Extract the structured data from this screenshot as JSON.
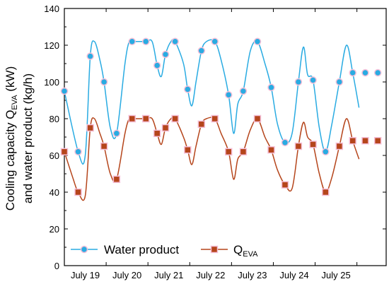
{
  "chart_data": {
    "type": "line",
    "ylabel_line1_main": "Cooling capacity Q",
    "ylabel_line1_sub": "EVA",
    "ylabel_line1_tail": " (kW)",
    "ylabel_line2": "and water product (kg/h)",
    "ylim": [
      0,
      140
    ],
    "yticks": [
      0,
      20,
      40,
      60,
      80,
      100,
      120,
      140
    ],
    "xlim": [
      18.0,
      25.7
    ],
    "xticks": [
      {
        "value": 18.5,
        "label": "July 19"
      },
      {
        "value": 19.5,
        "label": "July 20"
      },
      {
        "value": 20.5,
        "label": "July 21"
      },
      {
        "value": 21.5,
        "label": "July 22"
      },
      {
        "value": 22.5,
        "label": "July 23"
      },
      {
        "value": 23.5,
        "label": "July 24"
      },
      {
        "value": 24.5,
        "label": "July 25"
      }
    ],
    "legend_position": "bottom-left",
    "series": [
      {
        "name": "Water product",
        "color": "#29ABE2",
        "marker": "circle",
        "x": [
          18.0,
          18.33,
          18.62,
          18.95,
          19.25,
          19.62,
          19.95,
          20.22,
          20.42,
          20.65,
          20.95,
          21.28,
          21.6,
          21.93,
          22.28,
          22.62,
          22.95,
          23.28,
          23.6,
          23.95,
          24.25,
          24.58,
          24.9,
          25.2,
          25.5
        ],
        "y": [
          95,
          62,
          114,
          100,
          72,
          122,
          122,
          109,
          115,
          122,
          96,
          117,
          122,
          93,
          95,
          122,
          97,
          67,
          100,
          101,
          62,
          100,
          105,
          105,
          105
        ]
      },
      {
        "name": "Q_EVA",
        "legend_main": "Q",
        "legend_sub": "EVA",
        "color": "#B5451B",
        "marker": "square",
        "x": [
          18.0,
          18.33,
          18.62,
          18.95,
          19.25,
          19.62,
          19.95,
          20.22,
          20.42,
          20.65,
          20.95,
          21.28,
          21.6,
          21.93,
          22.28,
          22.62,
          22.95,
          23.28,
          23.6,
          23.95,
          24.25,
          24.58,
          24.9,
          25.2,
          25.5
        ],
        "y": [
          62,
          40,
          75,
          65,
          47,
          80,
          80,
          72,
          75,
          80,
          63,
          77,
          80,
          62,
          62,
          80,
          63,
          44,
          65,
          66,
          40,
          65,
          68,
          68,
          68
        ]
      }
    ],
    "curve_points": {
      "Water product": [
        [
          18.0,
          95
        ],
        [
          18.33,
          62
        ],
        [
          18.5,
          60
        ],
        [
          18.62,
          114
        ],
        [
          18.72,
          122
        ],
        [
          18.85,
          112
        ],
        [
          18.95,
          100
        ],
        [
          19.1,
          75
        ],
        [
          19.25,
          72
        ],
        [
          19.45,
          110
        ],
        [
          19.55,
          122
        ],
        [
          19.62,
          122
        ],
        [
          19.95,
          122
        ],
        [
          20.1,
          122
        ],
        [
          20.22,
          109
        ],
        [
          20.32,
          103
        ],
        [
          20.42,
          115
        ],
        [
          20.55,
          122
        ],
        [
          20.65,
          122
        ],
        [
          20.85,
          110
        ],
        [
          20.95,
          96
        ],
        [
          21.05,
          87
        ],
        [
          21.15,
          100
        ],
        [
          21.28,
          117
        ],
        [
          21.4,
          122
        ],
        [
          21.6,
          122
        ],
        [
          21.75,
          112
        ],
        [
          21.93,
          93
        ],
        [
          22.05,
          72
        ],
        [
          22.15,
          88
        ],
        [
          22.28,
          95
        ],
        [
          22.45,
          117
        ],
        [
          22.62,
          122
        ],
        [
          22.8,
          110
        ],
        [
          22.95,
          97
        ],
        [
          23.1,
          77
        ],
        [
          23.28,
          67
        ],
        [
          23.45,
          72
        ],
        [
          23.6,
          100
        ],
        [
          23.72,
          119
        ],
        [
          23.82,
          104
        ],
        [
          23.95,
          101
        ],
        [
          24.1,
          75
        ],
        [
          24.25,
          62
        ],
        [
          24.4,
          77
        ],
        [
          24.58,
          100
        ],
        [
          24.75,
          120
        ],
        [
          24.9,
          105
        ],
        [
          25.05,
          86
        ]
      ],
      "Q_EVA": [
        [
          18.0,
          62
        ],
        [
          18.2,
          48
        ],
        [
          18.33,
          40
        ],
        [
          18.5,
          38
        ],
        [
          18.62,
          75
        ],
        [
          18.72,
          80
        ],
        [
          18.85,
          72
        ],
        [
          18.95,
          65
        ],
        [
          19.1,
          50
        ],
        [
          19.25,
          47
        ],
        [
          19.45,
          72
        ],
        [
          19.55,
          80
        ],
        [
          19.62,
          80
        ],
        [
          19.95,
          80
        ],
        [
          20.1,
          80
        ],
        [
          20.22,
          72
        ],
        [
          20.32,
          66
        ],
        [
          20.42,
          75
        ],
        [
          20.55,
          80
        ],
        [
          20.65,
          80
        ],
        [
          20.85,
          70
        ],
        [
          20.95,
          63
        ],
        [
          21.05,
          55
        ],
        [
          21.15,
          65
        ],
        [
          21.28,
          77
        ],
        [
          21.4,
          80
        ],
        [
          21.6,
          80
        ],
        [
          21.75,
          72
        ],
        [
          21.93,
          62
        ],
        [
          22.05,
          47
        ],
        [
          22.15,
          58
        ],
        [
          22.28,
          62
        ],
        [
          22.45,
          74
        ],
        [
          22.62,
          80
        ],
        [
          22.8,
          70
        ],
        [
          22.95,
          63
        ],
        [
          23.1,
          52
        ],
        [
          23.28,
          44
        ],
        [
          23.45,
          42
        ],
        [
          23.6,
          65
        ],
        [
          23.72,
          78
        ],
        [
          23.82,
          70
        ],
        [
          23.95,
          66
        ],
        [
          24.1,
          50
        ],
        [
          24.25,
          40
        ],
        [
          24.4,
          48
        ],
        [
          24.58,
          65
        ],
        [
          24.75,
          80
        ],
        [
          24.9,
          68
        ],
        [
          25.05,
          58
        ]
      ]
    }
  }
}
